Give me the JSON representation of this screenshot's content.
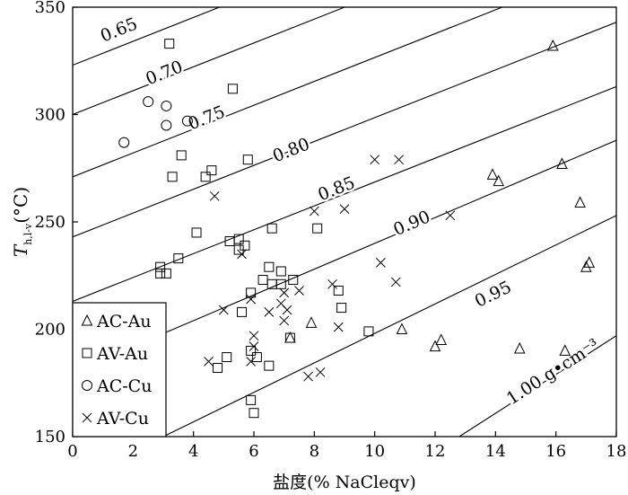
{
  "chart_data": {
    "type": "scatter",
    "xlabel": "盐度(% NaCleqv)",
    "ylabel_main": "T",
    "ylabel_sub": "h,l-v",
    "ylabel_unit": "(°C)",
    "xlim": [
      0,
      18
    ],
    "ylim": [
      150,
      350
    ],
    "x_ticks": [
      0,
      2,
      4,
      6,
      8,
      10,
      12,
      14,
      16,
      18
    ],
    "y_ticks": [
      150,
      200,
      250,
      300,
      350
    ],
    "grid": false,
    "legend_position": "bottom-left",
    "density_lines": [
      {
        "label": "0.65",
        "points": [
          [
            0,
            323
          ],
          [
            18,
            423
          ]
        ],
        "label_at": [
          1.6,
          337
        ]
      },
      {
        "label": "0.70",
        "points": [
          [
            0,
            300
          ],
          [
            18,
            400
          ]
        ],
        "label_at": [
          3.1,
          317
        ]
      },
      {
        "label": "0.75",
        "points": [
          [
            0,
            271
          ],
          [
            18,
            371
          ]
        ],
        "label_at": [
          4.5,
          296
        ]
      },
      {
        "label": "0.80",
        "points": [
          [
            0,
            243
          ],
          [
            18,
            343
          ]
        ],
        "label_at": [
          7.3,
          281
        ]
      },
      {
        "label": "0.85",
        "points": [
          [
            0,
            213
          ],
          [
            18,
            313
          ]
        ],
        "label_at": [
          8.8,
          263
        ]
      },
      {
        "label": "0.90",
        "points": [
          [
            0,
            180
          ],
          [
            18,
            288
          ]
        ],
        "label_at": [
          11.3,
          247
        ]
      },
      {
        "label": "0.95",
        "points": [
          [
            3.0,
            150
          ],
          [
            18,
            253
          ]
        ],
        "label_at": [
          14.0,
          214
        ]
      },
      {
        "label": "1.00 g•cm⁻³",
        "points": [
          [
            12.8,
            150
          ],
          [
            18,
            197
          ]
        ],
        "label_at": [
          16.0,
          178
        ]
      }
    ],
    "series": [
      {
        "name": "AC-Au",
        "marker": "triangle",
        "points": [
          [
            15.9,
            332
          ],
          [
            13.9,
            272
          ],
          [
            14.1,
            269
          ],
          [
            16.2,
            277
          ],
          [
            16.8,
            259
          ],
          [
            17.0,
            229
          ],
          [
            17.1,
            231
          ],
          [
            7.9,
            203
          ],
          [
            10.9,
            200
          ],
          [
            12.2,
            195
          ],
          [
            12.0,
            192
          ],
          [
            14.8,
            191
          ],
          [
            16.3,
            190
          ],
          [
            7.2,
            196
          ]
        ]
      },
      {
        "name": "AV-Au",
        "marker": "square",
        "points": [
          [
            3.2,
            333
          ],
          [
            5.3,
            312
          ],
          [
            3.6,
            281
          ],
          [
            4.6,
            274
          ],
          [
            5.8,
            279
          ],
          [
            3.3,
            271
          ],
          [
            4.4,
            271
          ],
          [
            4.1,
            245
          ],
          [
            5.2,
            241
          ],
          [
            5.5,
            242
          ],
          [
            5.7,
            239
          ],
          [
            5.5,
            237
          ],
          [
            6.6,
            247
          ],
          [
            8.1,
            247
          ],
          [
            3.5,
            233
          ],
          [
            2.9,
            229
          ],
          [
            2.9,
            226
          ],
          [
            3.1,
            226
          ],
          [
            6.5,
            229
          ],
          [
            6.9,
            227
          ],
          [
            6.3,
            223
          ],
          [
            7.3,
            223
          ],
          [
            6.6,
            221
          ],
          [
            6.9,
            221
          ],
          [
            8.8,
            218
          ],
          [
            5.9,
            217
          ],
          [
            8.9,
            210
          ],
          [
            5.6,
            208
          ],
          [
            7.2,
            196
          ],
          [
            9.8,
            199
          ],
          [
            5.9,
            190
          ],
          [
            6.1,
            187
          ],
          [
            5.1,
            187
          ],
          [
            4.8,
            182
          ],
          [
            6.5,
            183
          ],
          [
            5.9,
            167
          ],
          [
            6.0,
            161
          ]
        ]
      },
      {
        "name": "AC-Cu",
        "marker": "circle",
        "points": [
          [
            2.5,
            306
          ],
          [
            3.1,
            304
          ],
          [
            1.7,
            287
          ],
          [
            3.1,
            295
          ],
          [
            3.8,
            297
          ]
        ]
      },
      {
        "name": "AV-Cu",
        "marker": "x",
        "points": [
          [
            10.0,
            279
          ],
          [
            10.8,
            279
          ],
          [
            4.7,
            262
          ],
          [
            8.0,
            255
          ],
          [
            9.0,
            256
          ],
          [
            12.5,
            253
          ],
          [
            5.6,
            235
          ],
          [
            10.2,
            231
          ],
          [
            5.9,
            214
          ],
          [
            7.0,
            217
          ],
          [
            7.5,
            218
          ],
          [
            8.6,
            221
          ],
          [
            10.7,
            222
          ],
          [
            5.0,
            209
          ],
          [
            6.5,
            208
          ],
          [
            7.1,
            209
          ],
          [
            6.9,
            212
          ],
          [
            7.0,
            204
          ],
          [
            8.8,
            201
          ],
          [
            6.0,
            197
          ],
          [
            6.0,
            192
          ],
          [
            4.5,
            185
          ],
          [
            5.9,
            185
          ],
          [
            7.8,
            178
          ],
          [
            8.2,
            180
          ]
        ]
      }
    ]
  }
}
